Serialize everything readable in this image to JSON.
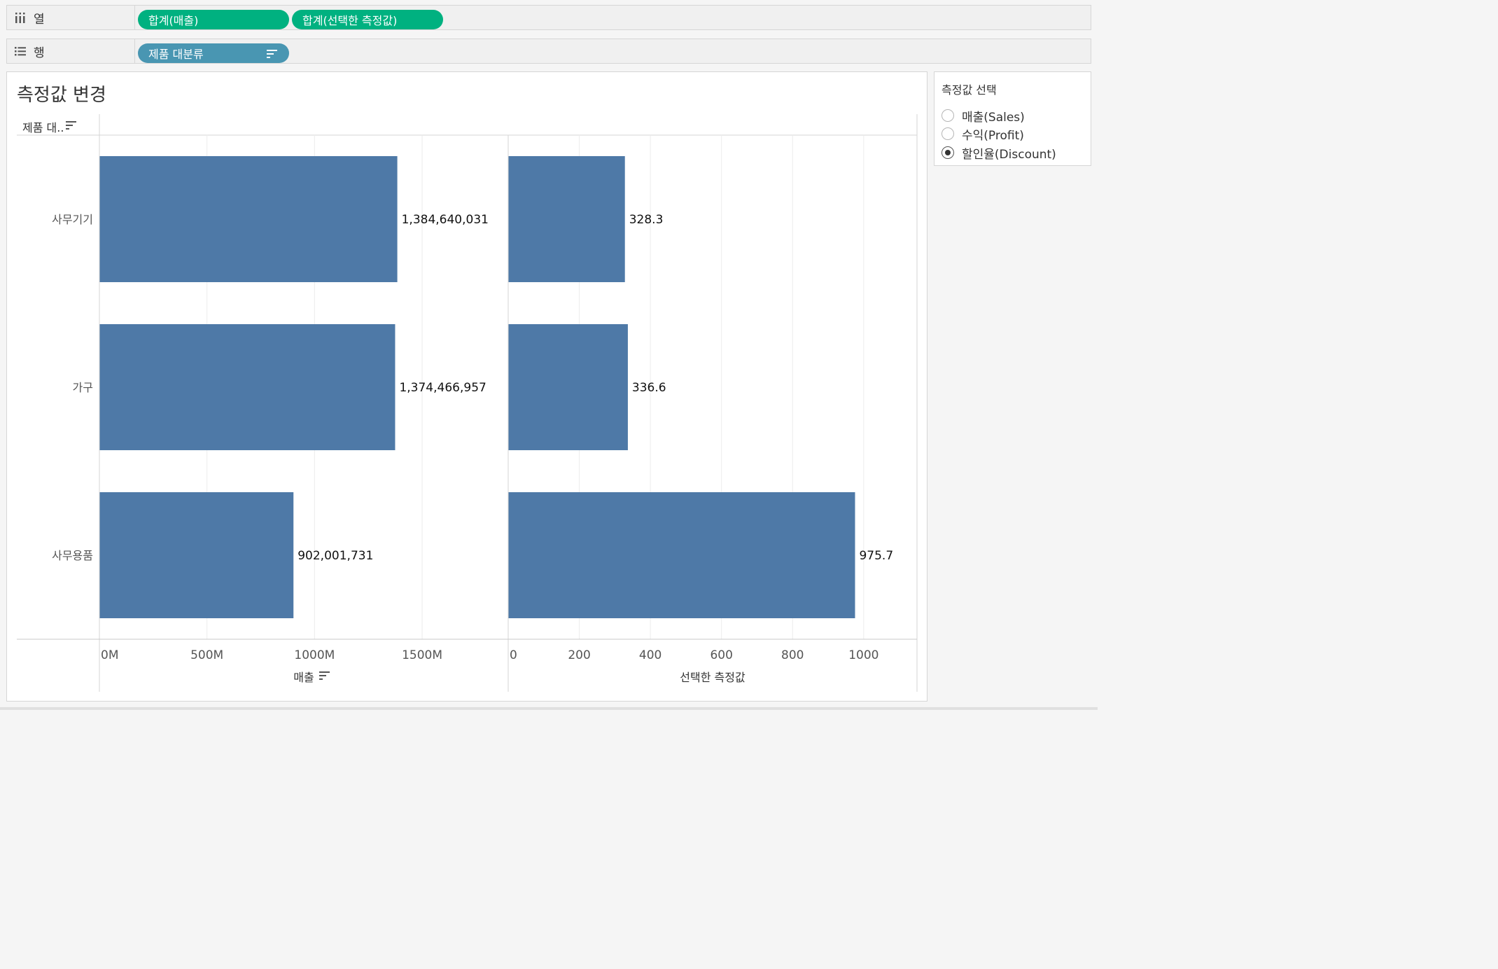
{
  "shelves": {
    "columns": {
      "label": "열",
      "pills": [
        "합계(매출)",
        "합계(선택한 측정값)"
      ]
    },
    "rows": {
      "label": "행",
      "pills": [
        "제품 대분류"
      ]
    }
  },
  "view": {
    "title": "측정값 변경",
    "row_header": "제품 대.."
  },
  "legend": {
    "title": "측정값 선택",
    "options": [
      {
        "label": "매출(Sales)",
        "selected": false
      },
      {
        "label": "수익(Profit)",
        "selected": false
      },
      {
        "label": "할인율(Discount)",
        "selected": true
      }
    ]
  },
  "colors": {
    "bar": "#4e79a7",
    "pill_measure": "#00b180",
    "pill_dimension": "#4996b2"
  },
  "chart_data": {
    "type": "bar",
    "orientation": "horizontal",
    "categories": [
      "사무기기",
      "가구",
      "사무용품"
    ],
    "panes": [
      {
        "axis_title": "매출",
        "values": [
          1384640031,
          1374466957,
          902001731
        ],
        "labels": [
          "1,384,640,031",
          "1,374,466,957",
          "902,001,731"
        ],
        "ticks": [
          0,
          500000000,
          1000000000,
          1500000000
        ],
        "tick_labels": [
          "0M",
          "500M",
          "1000M",
          "1500M"
        ],
        "range": [
          0,
          1900000000
        ],
        "sorted": true
      },
      {
        "axis_title": "선택한 측정값",
        "values": [
          328.3,
          336.6,
          975.7
        ],
        "labels": [
          "328.3",
          "336.6",
          "975.7"
        ],
        "ticks": [
          0,
          200,
          400,
          600,
          800,
          1000
        ],
        "tick_labels": [
          "0",
          "200",
          "400",
          "600",
          "800",
          "1000"
        ],
        "range": [
          0,
          1150
        ],
        "sorted": false
      }
    ],
    "grid": "vertical"
  }
}
